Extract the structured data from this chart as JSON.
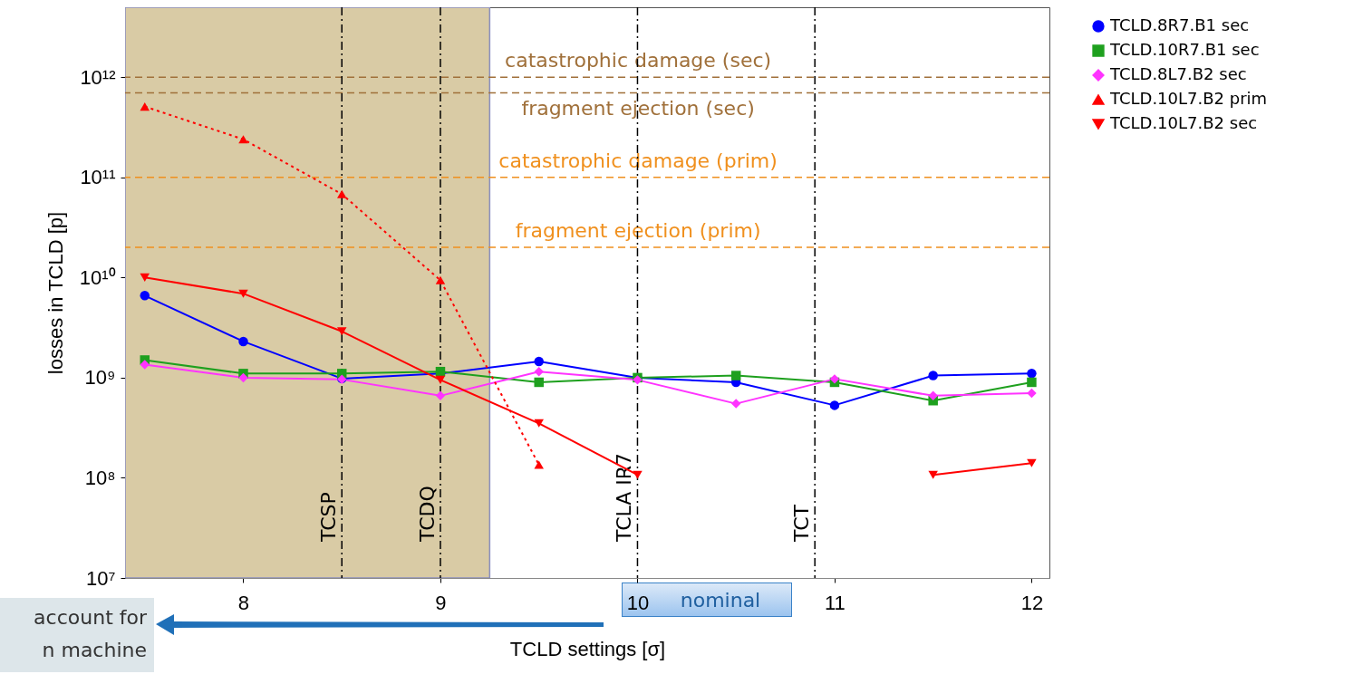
{
  "chart_data": {
    "type": "line",
    "xlabel": "TCLD settings [σ]",
    "ylabel": "losses in TCLD [p]",
    "x": [
      7.5,
      8,
      8.5,
      9,
      9.5,
      10,
      10.5,
      11,
      11.5,
      12
    ],
    "series": [
      {
        "name": "TCLD.8R7.B1 sec",
        "color": "#0000ff",
        "marker": "circle",
        "values": [
          6600000000.0,
          2300000000.0,
          980000000.0,
          1100000000.0,
          1450000000.0,
          1000000000.0,
          900000000.0,
          530000000.0,
          1050000000.0,
          1100000000.0
        ]
      },
      {
        "name": "TCLD.10R7.B1 sec",
        "color": "#1ea01e",
        "marker": "square",
        "values": [
          1500000000.0,
          1100000000.0,
          1100000000.0,
          1150000000.0,
          900000000.0,
          1000000000.0,
          1050000000.0,
          900000000.0,
          590000000.0,
          900000000.0
        ]
      },
      {
        "name": "TCLD.8L7.B2 sec",
        "color": "#ff33ff",
        "marker": "diamond",
        "values": [
          1350000000.0,
          1000000000.0,
          960000000.0,
          660000000.0,
          1150000000.0,
          950000000.0,
          550000000.0,
          970000000.0,
          660000000.0,
          700000000.0
        ]
      },
      {
        "name": "TCLD.10L7.B2 prim",
        "color": "#ff0000",
        "marker": "triangle",
        "line_style": "dotted",
        "values": [
          510000000000.0,
          240000000000.0,
          68000000000.0,
          9400000000.0,
          135000000.0,
          null,
          null,
          null,
          null,
          null
        ]
      },
      {
        "name": "TCLD.10L7.B2 sec",
        "color": "#ff0000",
        "marker": "triangle-down",
        "values": [
          10000000000.0,
          6900000000.0,
          2900000000.0,
          950000000.0,
          350000000.0,
          107000000.0,
          null,
          null,
          107000000.0,
          140000000.0
        ]
      }
    ],
    "xlim": [
      7.4,
      12.09
    ],
    "xticks": [
      8,
      9,
      10,
      11,
      12
    ],
    "ylim": [
      10000000.0,
      5000000000000.0
    ],
    "yticks": [
      {
        "value": 10000000.0,
        "label": "10⁷"
      },
      {
        "value": 100000000.0,
        "label": "10⁸"
      },
      {
        "value": 1000000000.0,
        "label": "10⁹"
      },
      {
        "value": 10000000000.0,
        "label": "10¹⁰"
      },
      {
        "value": 100000000000.0,
        "label": "10¹¹"
      },
      {
        "value": 1000000000000.0,
        "label": "10¹²"
      }
    ],
    "log": true,
    "legend": "top right",
    "ref_lines": [
      {
        "axis": "y",
        "value": 1000000000000.0,
        "label": "catastrophic damage (sec)",
        "color": "#a0703a",
        "line_style": "dashed"
      },
      {
        "axis": "y",
        "value": 700000000000.0,
        "label": "fragment ejection (sec)",
        "color": "#a0703a",
        "line_style": "dashed"
      },
      {
        "axis": "y",
        "value": 100000000000.0,
        "label": "catastrophic damage (prim)",
        "color": "#f0901e",
        "line_style": "dashed"
      },
      {
        "axis": "y",
        "value": 20000000000.0,
        "label": "fragment ejection (prim)",
        "color": "#f0901e",
        "line_style": "dashed"
      },
      {
        "axis": "x",
        "value": 8.5,
        "label": "TCSP",
        "color": "#000000",
        "line_style": "dashdot"
      },
      {
        "axis": "x",
        "value": 9,
        "label": "TCDQ",
        "color": "#000000",
        "line_style": "dashdot"
      },
      {
        "axis": "x",
        "value": 10,
        "label": "TCLA IR7",
        "color": "#000000",
        "line_style": "dashdot"
      },
      {
        "axis": "x",
        "value": 10.9,
        "label": "TCT",
        "color": "#000000",
        "line_style": "dashdot"
      }
    ],
    "bands": [
      {
        "axis": "x",
        "from": 7.4,
        "to": 9.25,
        "color": "#d9cba5"
      }
    ],
    "annotations": [
      "nominal",
      "account for\nn machine"
    ]
  }
}
